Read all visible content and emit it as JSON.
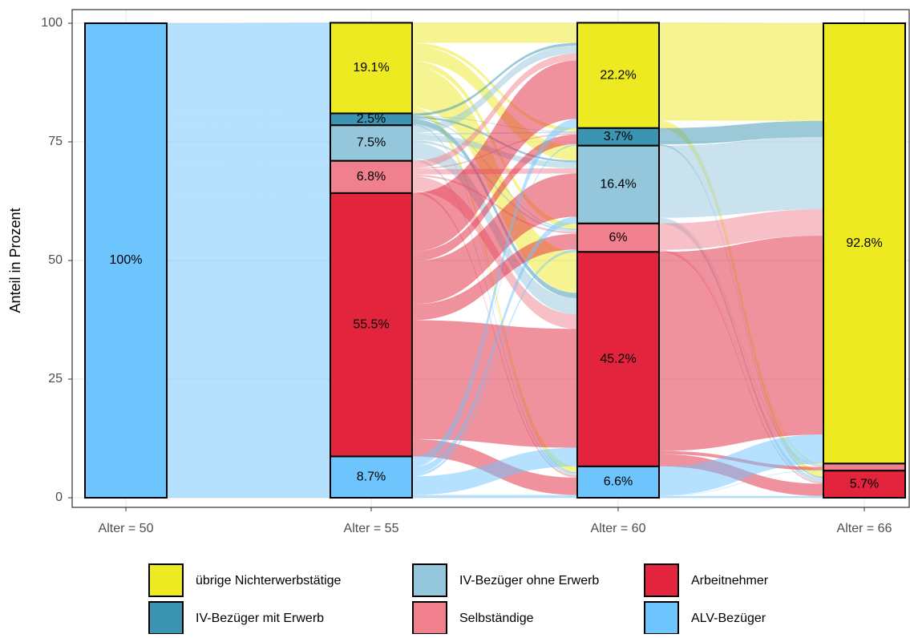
{
  "chart_data": {
    "type": "alluvial",
    "ylabel": "Anteil in Prozent",
    "categories": [
      "Alter = 50",
      "Alter = 55",
      "Alter = 60",
      "Alter = 66"
    ],
    "ylim": [
      0,
      100
    ],
    "yticks": [
      0,
      25,
      50,
      75,
      100
    ],
    "grid": true,
    "legend": "bottom",
    "series": [
      {
        "name": "übrige Nichterwerbstätige",
        "color": "#eeea22",
        "values": [
          0,
          19.1,
          22.2,
          92.8
        ],
        "value_labels": [
          null,
          "19.1%",
          "22.2%",
          "92.8%"
        ]
      },
      {
        "name": "IV-Bezüger mit Erwerb",
        "color": "#3a94b2",
        "values": [
          0,
          2.5,
          3.7,
          0
        ],
        "value_labels": [
          null,
          "2.5%",
          "3.7%",
          null
        ]
      },
      {
        "name": "IV-Bezüger ohne Erwerb",
        "color": "#94c6dc",
        "values": [
          0,
          7.5,
          16.4,
          0
        ],
        "value_labels": [
          null,
          "7.5%",
          "16.4%",
          null
        ]
      },
      {
        "name": "Selbständige",
        "color": "#f0808e",
        "values": [
          0,
          6.8,
          6,
          1.5
        ],
        "value_labels": [
          null,
          "6.8%",
          "6%",
          null
        ]
      },
      {
        "name": "Arbeitnehmer",
        "color": "#e2243d",
        "values": [
          0,
          55.5,
          45.2,
          5.7
        ],
        "value_labels": [
          null,
          "55.5%",
          "45.2%",
          "5.7%"
        ]
      },
      {
        "name": "ALV-Bezüger",
        "color": "#6ec4fd",
        "values": [
          100,
          8.7,
          6.6,
          0
        ],
        "value_labels": [
          "100%",
          "8.7%",
          "6.6%",
          null
        ]
      }
    ]
  }
}
